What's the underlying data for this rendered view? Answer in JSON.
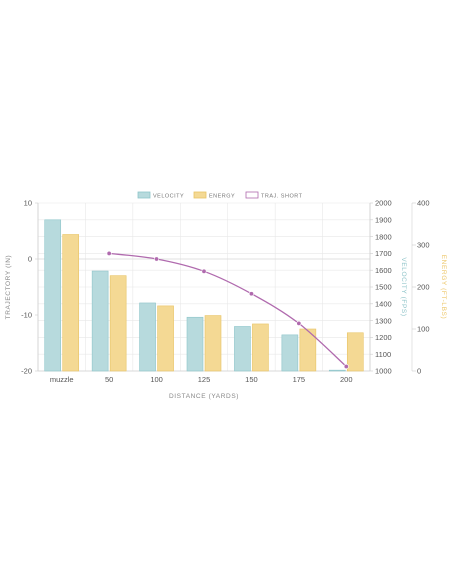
{
  "chart_data": {
    "type": "bar",
    "categories": [
      "muzzle",
      "50",
      "100",
      "125",
      "150",
      "175",
      "200"
    ],
    "xlabel": "DISTANCE (YARDS)",
    "series": [
      {
        "name": "VELOCITY",
        "type": "bar",
        "axis": "velocity",
        "values": [
          1900,
          1595,
          1405,
          1320,
          1265,
          1215,
          1005
        ]
      },
      {
        "name": "ENERGY",
        "type": "bar",
        "axis": "energy",
        "values": [
          325,
          227,
          155,
          132,
          112,
          100,
          91
        ]
      },
      {
        "name": "TRAJ. SHORT",
        "type": "line",
        "axis": "trajectory",
        "values": [
          null,
          1.0,
          0.0,
          -2.2,
          -6.2,
          -11.5,
          -19.2
        ]
      }
    ],
    "axes": {
      "trajectory": {
        "label": "TRAJECTORY (IN)",
        "range": [
          -20,
          10
        ],
        "ticks": [
          10,
          0,
          -10,
          -20
        ]
      },
      "velocity": {
        "label": "VELOCITY (FPS)",
        "range": [
          1000,
          2000
        ],
        "ticks": [
          2000,
          1900,
          1800,
          1700,
          1600,
          1500,
          1400,
          1300,
          1200,
          1100,
          1000
        ]
      },
      "energy": {
        "label": "ENERGY (FT-LBS)",
        "range": [
          0,
          400
        ],
        "ticks": [
          400,
          300,
          200,
          100,
          0
        ]
      }
    },
    "legend_position": "top-center",
    "grid": true
  },
  "colors": {
    "velocity_fill": "#b7dadd",
    "velocity_stroke": "#8ec5ca",
    "energy_fill": "#f4d994",
    "energy_stroke": "#e8c465",
    "trajectory_line": "#b06aae",
    "trajectory_axis_text": "#888888",
    "velocity_axis_text": "#8fc4c9",
    "energy_axis_text": "#edc76b",
    "grid": "#e8e8e8"
  }
}
